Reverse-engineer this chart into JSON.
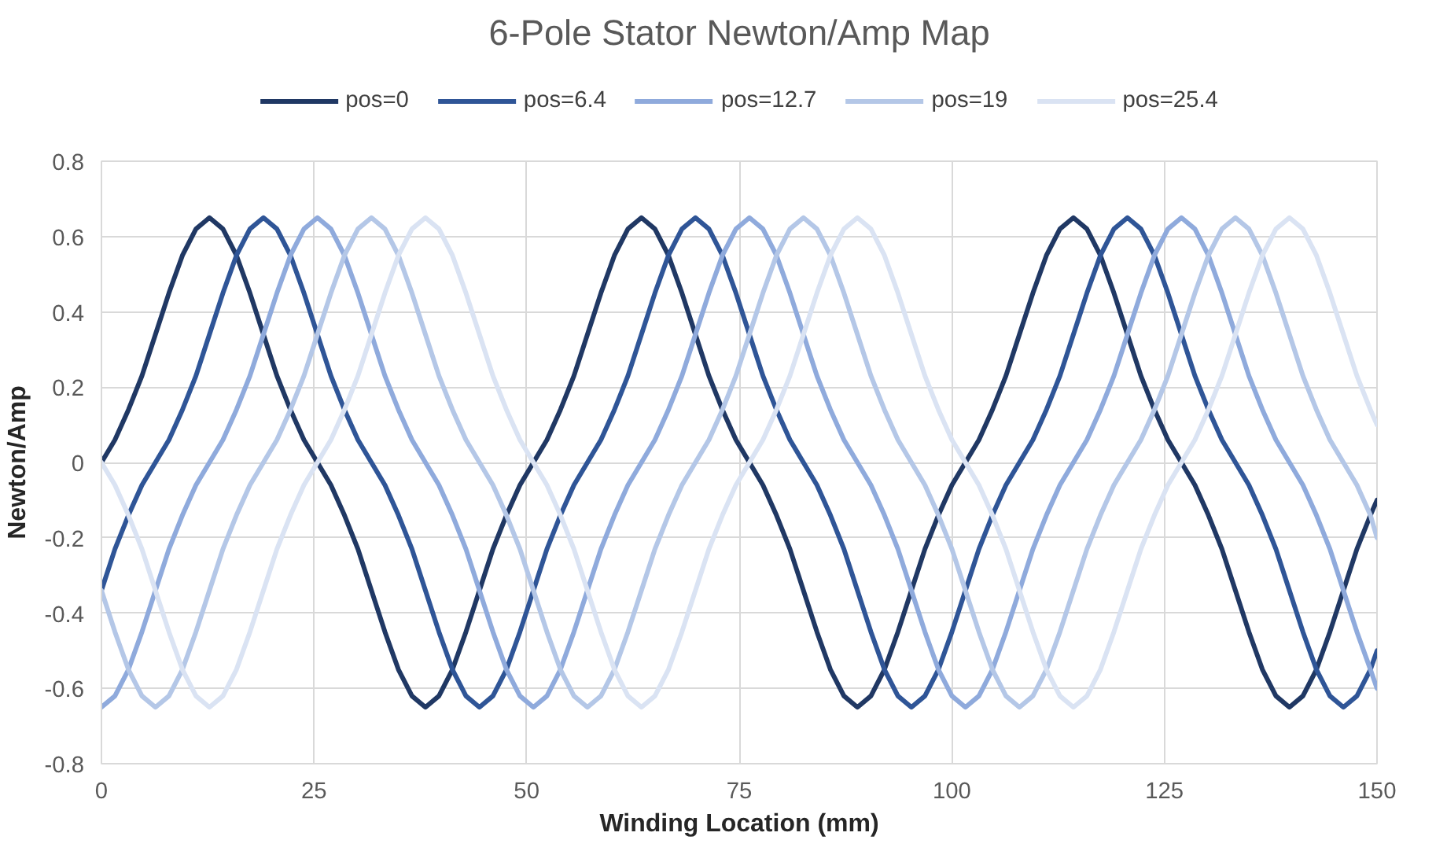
{
  "chart_data": {
    "type": "line",
    "title": "6-Pole Stator Newton/Amp Map",
    "xlabel": "Winding Location (mm)",
    "ylabel": "Newton/Amp",
    "x": [
      0,
      1.5875,
      3.175,
      4.7625,
      6.35,
      7.9375,
      9.525,
      11.1125,
      12.7,
      14.2875,
      15.875,
      17.4625,
      19.05,
      20.6375,
      22.225,
      23.8125,
      25.4,
      26.9875,
      28.575,
      30.1625,
      31.75,
      33.3375,
      34.925,
      36.5125,
      38.1,
      39.6875,
      41.275,
      42.8625,
      44.45,
      46.0375,
      47.625,
      49.2125,
      50.8,
      52.3875,
      53.975,
      55.5625,
      57.15,
      58.7375,
      60.325,
      61.9125,
      63.5,
      65.0875,
      66.675,
      68.2625,
      69.85,
      71.4375,
      73.025,
      74.6125,
      76.2,
      77.7875,
      79.375,
      80.9625,
      82.55,
      84.1375,
      85.725,
      87.3125,
      88.9,
      90.4875,
      92.075,
      93.6625,
      95.25,
      96.8375,
      98.425,
      100.0125,
      101.6,
      103.1875,
      104.775,
      106.3625,
      107.95,
      109.5375,
      111.125,
      112.7125,
      114.3,
      115.8875,
      117.475,
      119.0625,
      120.65,
      122.2375,
      123.825,
      125.4125,
      127,
      128.5875,
      130.175,
      131.7625,
      133.35,
      134.9375,
      136.525,
      138.1125,
      139.7,
      141.2875,
      142.875,
      144.4625,
      146.05,
      147.6375,
      149.225,
      150
    ],
    "series": [
      {
        "name": "pos=0",
        "color": "#203864",
        "values": [
          0,
          0.06,
          0.14,
          0.23,
          0.34,
          0.45,
          0.55,
          0.62,
          0.65,
          0.62,
          0.55,
          0.45,
          0.34,
          0.23,
          0.14,
          0.06,
          0,
          -0.06,
          -0.14,
          -0.23,
          -0.34,
          -0.45,
          -0.55,
          -0.62,
          -0.65,
          -0.62,
          -0.55,
          -0.45,
          -0.34,
          -0.23,
          -0.14,
          -0.06,
          0,
          0.06,
          0.14,
          0.23,
          0.34,
          0.45,
          0.55,
          0.62,
          0.65,
          0.62,
          0.55,
          0.45,
          0.34,
          0.23,
          0.14,
          0.06,
          0,
          -0.06,
          -0.14,
          -0.23,
          -0.34,
          -0.45,
          -0.55,
          -0.62,
          -0.65,
          -0.62,
          -0.55,
          -0.45,
          -0.34,
          -0.23,
          -0.14,
          -0.06,
          0,
          0.06,
          0.14,
          0.23,
          0.34,
          0.45,
          0.55,
          0.62,
          0.65,
          0.62,
          0.55,
          0.45,
          0.34,
          0.23,
          0.14,
          0.06,
          0,
          -0.06,
          -0.14,
          -0.23,
          -0.34,
          -0.45,
          -0.55,
          -0.62,
          -0.65,
          -0.62,
          -0.55,
          -0.45,
          -0.34,
          -0.23,
          -0.14,
          -0.1
        ]
      },
      {
        "name": "pos=6.4",
        "color": "#2f5597",
        "values": [
          -0.34,
          -0.23,
          -0.14,
          -0.06,
          0,
          0.06,
          0.14,
          0.23,
          0.34,
          0.45,
          0.55,
          0.62,
          0.65,
          0.62,
          0.55,
          0.45,
          0.34,
          0.23,
          0.14,
          0.06,
          0,
          -0.06,
          -0.14,
          -0.23,
          -0.34,
          -0.45,
          -0.55,
          -0.62,
          -0.65,
          -0.62,
          -0.55,
          -0.45,
          -0.34,
          -0.23,
          -0.14,
          -0.06,
          0,
          0.06,
          0.14,
          0.23,
          0.34,
          0.45,
          0.55,
          0.62,
          0.65,
          0.62,
          0.55,
          0.45,
          0.34,
          0.23,
          0.14,
          0.06,
          0,
          -0.06,
          -0.14,
          -0.23,
          -0.34,
          -0.45,
          -0.55,
          -0.62,
          -0.65,
          -0.62,
          -0.55,
          -0.45,
          -0.34,
          -0.23,
          -0.14,
          -0.06,
          0,
          0.06,
          0.14,
          0.23,
          0.34,
          0.45,
          0.55,
          0.62,
          0.65,
          0.62,
          0.55,
          0.45,
          0.34,
          0.23,
          0.14,
          0.06,
          0,
          -0.06,
          -0.14,
          -0.23,
          -0.34,
          -0.45,
          -0.55,
          -0.62,
          -0.65,
          -0.62,
          -0.55,
          -0.5
        ]
      },
      {
        "name": "pos=12.7",
        "color": "#8faadc",
        "values": [
          -0.65,
          -0.62,
          -0.55,
          -0.45,
          -0.34,
          -0.23,
          -0.14,
          -0.06,
          0,
          0.06,
          0.14,
          0.23,
          0.34,
          0.45,
          0.55,
          0.62,
          0.65,
          0.62,
          0.55,
          0.45,
          0.34,
          0.23,
          0.14,
          0.06,
          0,
          -0.06,
          -0.14,
          -0.23,
          -0.34,
          -0.45,
          -0.55,
          -0.62,
          -0.65,
          -0.62,
          -0.55,
          -0.45,
          -0.34,
          -0.23,
          -0.14,
          -0.06,
          0,
          0.06,
          0.14,
          0.23,
          0.34,
          0.45,
          0.55,
          0.62,
          0.65,
          0.62,
          0.55,
          0.45,
          0.34,
          0.23,
          0.14,
          0.06,
          0,
          -0.06,
          -0.14,
          -0.23,
          -0.34,
          -0.45,
          -0.55,
          -0.62,
          -0.65,
          -0.62,
          -0.55,
          -0.45,
          -0.34,
          -0.23,
          -0.14,
          -0.06,
          0,
          0.06,
          0.14,
          0.23,
          0.34,
          0.45,
          0.55,
          0.62,
          0.65,
          0.62,
          0.55,
          0.45,
          0.34,
          0.23,
          0.14,
          0.06,
          0,
          -0.06,
          -0.14,
          -0.23,
          -0.34,
          -0.45,
          -0.55,
          -0.6
        ]
      },
      {
        "name": "pos=19",
        "color": "#b4c7e7",
        "values": [
          -0.34,
          -0.45,
          -0.55,
          -0.62,
          -0.65,
          -0.62,
          -0.55,
          -0.45,
          -0.34,
          -0.23,
          -0.14,
          -0.06,
          0,
          0.06,
          0.14,
          0.23,
          0.34,
          0.45,
          0.55,
          0.62,
          0.65,
          0.62,
          0.55,
          0.45,
          0.34,
          0.23,
          0.14,
          0.06,
          0,
          -0.06,
          -0.14,
          -0.23,
          -0.34,
          -0.45,
          -0.55,
          -0.62,
          -0.65,
          -0.62,
          -0.55,
          -0.45,
          -0.34,
          -0.23,
          -0.14,
          -0.06,
          0,
          0.06,
          0.14,
          0.23,
          0.34,
          0.45,
          0.55,
          0.62,
          0.65,
          0.62,
          0.55,
          0.45,
          0.34,
          0.23,
          0.14,
          0.06,
          0,
          -0.06,
          -0.14,
          -0.23,
          -0.34,
          -0.45,
          -0.55,
          -0.62,
          -0.65,
          -0.62,
          -0.55,
          -0.45,
          -0.34,
          -0.23,
          -0.14,
          -0.06,
          0,
          0.06,
          0.14,
          0.23,
          0.34,
          0.45,
          0.55,
          0.62,
          0.65,
          0.62,
          0.55,
          0.45,
          0.34,
          0.23,
          0.14,
          0.06,
          0,
          -0.06,
          -0.14,
          -0.2
        ]
      },
      {
        "name": "pos=25.4",
        "color": "#dae3f3",
        "values": [
          0,
          -0.06,
          -0.14,
          -0.23,
          -0.34,
          -0.45,
          -0.55,
          -0.62,
          -0.65,
          -0.62,
          -0.55,
          -0.45,
          -0.34,
          -0.23,
          -0.14,
          -0.06,
          0,
          0.06,
          0.14,
          0.23,
          0.34,
          0.45,
          0.55,
          0.62,
          0.65,
          0.62,
          0.55,
          0.45,
          0.34,
          0.23,
          0.14,
          0.06,
          0,
          -0.06,
          -0.14,
          -0.23,
          -0.34,
          -0.45,
          -0.55,
          -0.62,
          -0.65,
          -0.62,
          -0.55,
          -0.45,
          -0.34,
          -0.23,
          -0.14,
          -0.06,
          0,
          0.06,
          0.14,
          0.23,
          0.34,
          0.45,
          0.55,
          0.62,
          0.65,
          0.62,
          0.55,
          0.45,
          0.34,
          0.23,
          0.14,
          0.06,
          0,
          -0.06,
          -0.14,
          -0.23,
          -0.34,
          -0.45,
          -0.55,
          -0.62,
          -0.65,
          -0.62,
          -0.55,
          -0.45,
          -0.34,
          -0.23,
          -0.14,
          -0.06,
          0,
          0.06,
          0.14,
          0.23,
          0.34,
          0.45,
          0.55,
          0.62,
          0.65,
          0.62,
          0.55,
          0.45,
          0.34,
          0.23,
          0.14,
          0.1
        ]
      }
    ],
    "xlim": [
      0,
      150
    ],
    "xticks": [
      0,
      25,
      50,
      75,
      100,
      125,
      150
    ],
    "ylim": [
      -0.8,
      0.8
    ],
    "yticks": [
      {
        "value": -0.8,
        "label": "-0.8"
      },
      {
        "value": -0.6,
        "label": "-0.6"
      },
      {
        "value": -0.4,
        "label": "-0.4"
      },
      {
        "value": -0.2,
        "label": "-0.2"
      },
      0,
      0.2,
      0.4,
      0.6,
      0.8
    ],
    "grid": true,
    "legend": "top",
    "line_style": "solid",
    "marker": "none"
  }
}
